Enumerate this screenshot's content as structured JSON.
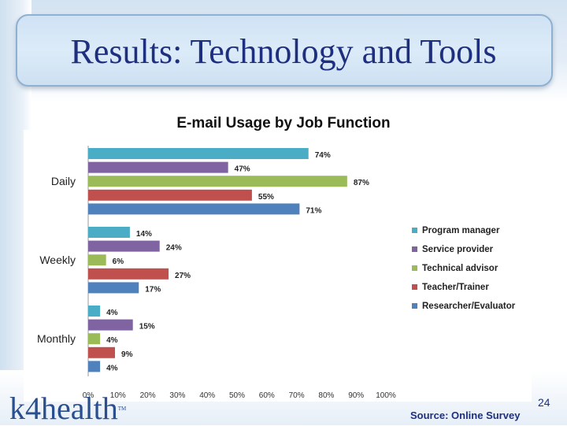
{
  "slide": {
    "title": "Results: Technology and Tools",
    "source": "Source: Online Survey",
    "page_number": "24",
    "logo_text": "k4health",
    "logo_tm": "TM"
  },
  "colors": {
    "title_text": "#1f2f80",
    "program_manager": "#4bacc6",
    "service_provider": "#8064a2",
    "technical_advisor": "#9bbb59",
    "teacher_trainer": "#c0504d",
    "researcher_evaluator": "#4f81bd"
  },
  "chart_data": {
    "type": "bar",
    "orientation": "horizontal",
    "title": "E-mail Usage by Job Function",
    "categories": [
      "Daily",
      "Weekly",
      "Monthly"
    ],
    "series": [
      {
        "name": "Program manager",
        "values": [
          74,
          14,
          4
        ],
        "color": "#4bacc6"
      },
      {
        "name": "Service provider",
        "values": [
          47,
          24,
          15
        ],
        "color": "#8064a2"
      },
      {
        "name": "Technical advisor",
        "values": [
          87,
          6,
          4
        ],
        "color": "#9bbb59"
      },
      {
        "name": "Teacher/Trainer",
        "values": [
          55,
          27,
          9
        ],
        "color": "#c0504d"
      },
      {
        "name": "Researcher/Evaluator",
        "values": [
          71,
          17,
          4
        ],
        "color": "#4f81bd"
      }
    ],
    "xlim": [
      0,
      100
    ],
    "xticks": [
      "0%",
      "10%",
      "20%",
      "30%",
      "40%",
      "50%",
      "60%",
      "70%",
      "80%",
      "90%",
      "100%"
    ],
    "value_suffix": "%",
    "legend_position": "right",
    "grid": false
  }
}
